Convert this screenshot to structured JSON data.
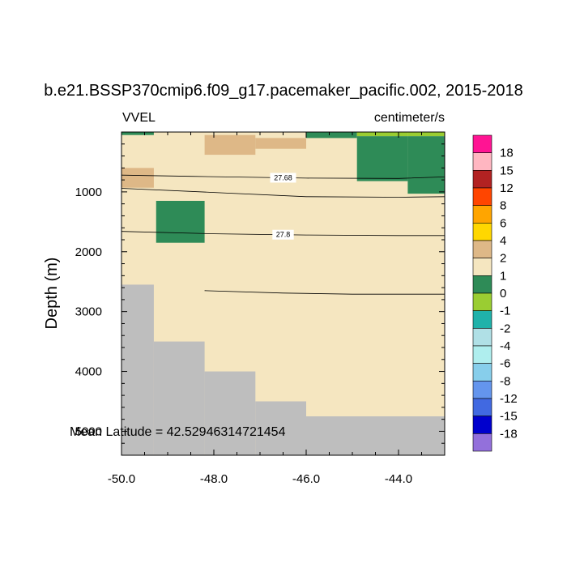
{
  "chart_data": {
    "type": "heatmap",
    "title": "b.e21.BSSP370cmip6.f09_g17.pacemaker_pacific.002, 2015-2018",
    "left_label": "VVEL",
    "right_label": "centimeter/s",
    "ylabel": "Depth (m)",
    "xlabel": "",
    "xlim": [
      -50.0,
      -43.0
    ],
    "ylim": [
      0,
      5400
    ],
    "y_inverted": true,
    "xticks": [
      -50.0,
      -48.0,
      -46.0,
      -44.0
    ],
    "xtick_labels": [
      "-50.0",
      "-48.0",
      "-46.0",
      "-44.0"
    ],
    "yticks": [
      1000,
      2000,
      3000,
      4000,
      5000
    ],
    "ytick_labels": [
      "1000",
      "2000",
      "3000",
      "4000",
      "5000"
    ],
    "note": "Mean Latitude = 42.52946314721454",
    "background_color": "#f5e6c0",
    "land_color": "#bebebe",
    "colorbar": {
      "labels": [
        "18",
        "15",
        "12",
        "8",
        "6",
        "4",
        "2",
        "1",
        "0",
        "-1",
        "-2",
        "-4",
        "-6",
        "-8",
        "-12",
        "-15",
        "-18"
      ],
      "colors": [
        "#ff1493",
        "#ffb6c1",
        "#b22222",
        "#ff4500",
        "#ffa500",
        "#ffd700",
        "#deb887",
        "#f5e6c0",
        "#2e8b57",
        "#9acd32",
        "#20b2aa",
        "#b0e0e6",
        "#afeeee",
        "#87ceeb",
        "#6495ed",
        "#4169e1",
        "#0000cd",
        "#9370db"
      ]
    },
    "bathymetry": [
      {
        "x0": -50.0,
        "x1": -49.3,
        "depth": 2550
      },
      {
        "x0": -49.3,
        "x1": -48.2,
        "depth": 3500
      },
      {
        "x0": -48.2,
        "x1": -47.1,
        "depth": 4000
      },
      {
        "x0": -47.1,
        "x1": -46.0,
        "depth": 4500
      },
      {
        "x0": -46.0,
        "x1": -43.0,
        "depth": 4750
      }
    ],
    "cells": [
      {
        "x0": -50.0,
        "x1": -49.3,
        "d0": 0,
        "d1": 50,
        "color": "#2e8b57"
      },
      {
        "x0": -50.0,
        "x1": -49.3,
        "d0": 600,
        "d1": 930,
        "color": "#deb887"
      },
      {
        "x0": -48.2,
        "x1": -47.1,
        "d0": 50,
        "d1": 380,
        "color": "#deb887"
      },
      {
        "x0": -47.1,
        "x1": -46.0,
        "d0": 100,
        "d1": 280,
        "color": "#deb887"
      },
      {
        "x0": -46.0,
        "x1": -44.9,
        "d0": 0,
        "d1": 100,
        "color": "#2e8b57"
      },
      {
        "x0": -44.9,
        "x1": -43.8,
        "d0": 0,
        "d1": 70,
        "color": "#9acd32"
      },
      {
        "x0": -43.8,
        "x1": -43.0,
        "d0": 0,
        "d1": 70,
        "color": "#9acd32"
      },
      {
        "x0": -44.9,
        "x1": -43.8,
        "d0": 70,
        "d1": 820,
        "color": "#2e8b57"
      },
      {
        "x0": -43.8,
        "x1": -43.0,
        "d0": 70,
        "d1": 1030,
        "color": "#2e8b57"
      },
      {
        "x0": -49.25,
        "x1": -48.2,
        "d0": 1150,
        "d1": 1850,
        "color": "#2e8b57"
      }
    ],
    "contours": [
      {
        "label": "27.68",
        "points": [
          [
            -50.0,
            720
          ],
          [
            -48.5,
            740
          ],
          [
            -46.0,
            770
          ],
          [
            -44.0,
            775
          ],
          [
            -43.0,
            750
          ]
        ],
        "label_x": -46.5
      },
      {
        "label": "",
        "points": [
          [
            -50.0,
            940
          ],
          [
            -48.0,
            1010
          ],
          [
            -46.0,
            1080
          ],
          [
            -44.0,
            1090
          ],
          [
            -43.0,
            1080
          ]
        ],
        "label_x": null
      },
      {
        "label": "27.8",
        "points": [
          [
            -50.0,
            1660
          ],
          [
            -48.0,
            1700
          ],
          [
            -46.0,
            1720
          ],
          [
            -44.0,
            1730
          ],
          [
            -43.0,
            1730
          ]
        ],
        "label_x": -46.5
      },
      {
        "label": "",
        "points": [
          [
            -48.2,
            2650
          ],
          [
            -46.5,
            2690
          ],
          [
            -45.0,
            2710
          ],
          [
            -43.0,
            2710
          ]
        ],
        "label_x": null
      }
    ]
  }
}
